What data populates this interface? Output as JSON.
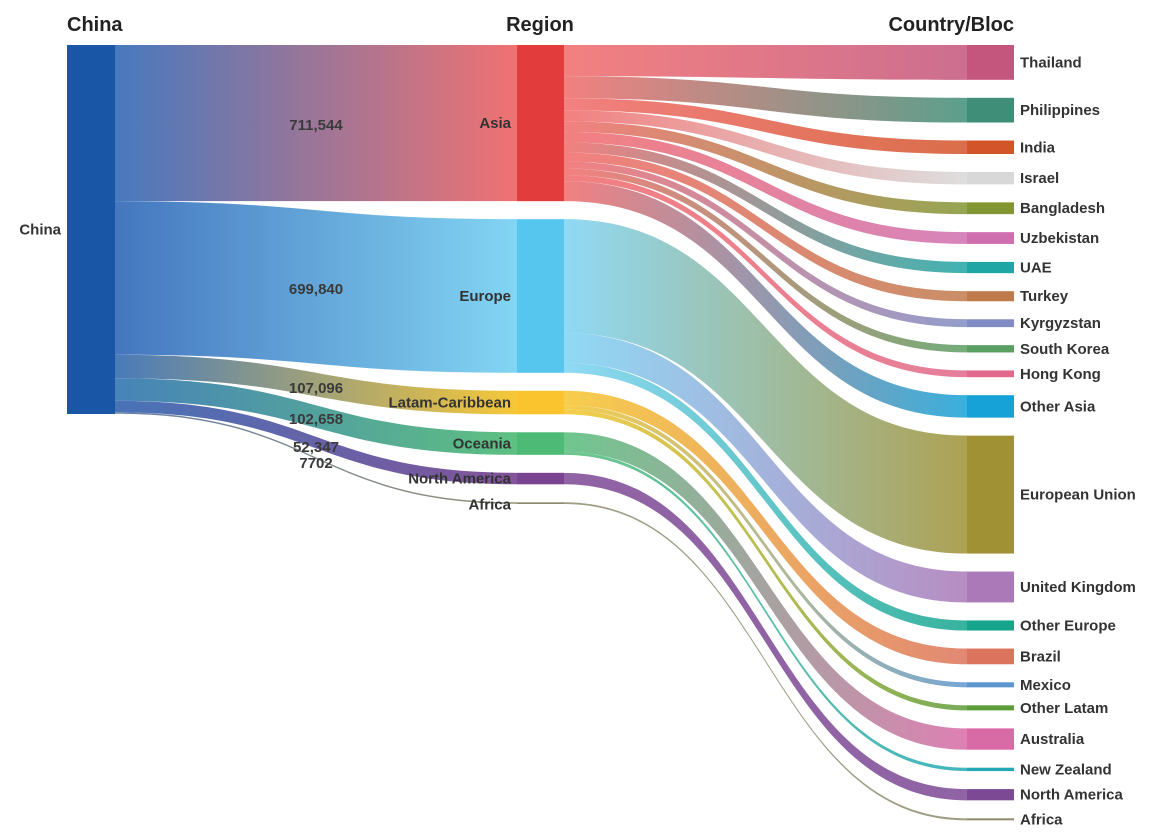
{
  "chart_data": {
    "type": "sankey",
    "columns": [
      "China",
      "Region",
      "Country/Bloc"
    ],
    "source": {
      "name": "China",
      "color": "#1a56a6"
    },
    "regions": [
      {
        "name": "Asia",
        "value": 711544,
        "value_label": "711,544",
        "color": "#e23c3c",
        "link_start": "#3d72ba",
        "link_end": "#f06a6a"
      },
      {
        "name": "Europe",
        "value": 699840,
        "value_label": "699,840",
        "color": "#56c6ef",
        "link_start": "#3a6fbb",
        "link_end": "#7cd3f3"
      },
      {
        "name": "Latam-Caribbean",
        "value": 107096,
        "value_label": "107,096",
        "color": "#f9c42d",
        "link_start": "#3f74b6",
        "link_end": "#f6c52d"
      },
      {
        "name": "Oceania",
        "value": 102658,
        "value_label": "102,658",
        "color": "#4dbb76",
        "link_start": "#3d7cb5",
        "link_end": "#55bd7a"
      },
      {
        "name": "North America",
        "value": 52347,
        "value_label": "52,347",
        "color": "#7b4490",
        "link_start": "#3f6cb3",
        "link_end": "#7c4994"
      },
      {
        "name": "Africa",
        "value": 7702,
        "value_label": "7702",
        "color": "#8d8b6c",
        "link_start": "#5f7aa2",
        "link_end": "#8d8b6c"
      }
    ],
    "countries": [
      {
        "name": "Thailand",
        "region": "Asia",
        "value": 62000,
        "color": "#c4557c"
      },
      {
        "name": "Philippines",
        "region": "Asia",
        "value": 44000,
        "color": "#3f8e78"
      },
      {
        "name": "India",
        "region": "Asia",
        "value": 24000,
        "color": "#d4542a"
      },
      {
        "name": "Israel",
        "region": "Asia",
        "value": 22000,
        "color": "#d8d8d8"
      },
      {
        "name": "Bangladesh",
        "region": "Asia",
        "value": 21000,
        "color": "#829634"
      },
      {
        "name": "Uzbekistan",
        "region": "Asia",
        "value": 21000,
        "color": "#cf6fb0"
      },
      {
        "name": "UAE",
        "region": "Asia",
        "value": 20000,
        "color": "#1ea6a4"
      },
      {
        "name": "Turkey",
        "region": "Asia",
        "value": 18000,
        "color": "#c07b4c"
      },
      {
        "name": "Kyrgyzstan",
        "region": "Asia",
        "value": 14000,
        "color": "#7f8dc4"
      },
      {
        "name": "South Korea",
        "region": "Asia",
        "value": 13000,
        "color": "#5b9e62"
      },
      {
        "name": "Hong Kong",
        "region": "Asia",
        "value": 12000,
        "color": "#e0688a"
      },
      {
        "name": "Other Asia",
        "region": "Asia",
        "value": 40000,
        "color": "#16a2d6"
      },
      {
        "name": "European Union",
        "region": "Europe",
        "value": 210000,
        "color": "#9f9134"
      },
      {
        "name": "United Kingdom",
        "region": "Europe",
        "value": 55000,
        "color": "#ab79b8"
      },
      {
        "name": "Other Europe",
        "region": "Europe",
        "value": 18000,
        "color": "#14a58c"
      },
      {
        "name": "Brazil",
        "region": "Latam-Caribbean",
        "value": 28000,
        "color": "#dc735c"
      },
      {
        "name": "Mexico",
        "region": "Latam-Caribbean",
        "value": 9000,
        "color": "#5c96cf"
      },
      {
        "name": "Other Latam",
        "region": "Latam-Caribbean",
        "value": 9000,
        "color": "#5e9c3a"
      },
      {
        "name": "Australia",
        "region": "Oceania",
        "value": 38000,
        "color": "#d86aa6"
      },
      {
        "name": "New Zealand",
        "region": "Oceania",
        "value": 6000,
        "color": "#23a9b5"
      },
      {
        "name": "North America",
        "region": "North America",
        "value": 20000,
        "color": "#7c4994"
      },
      {
        "name": "Africa",
        "region": "Africa",
        "value": 3000,
        "color": "#8d8b6c"
      }
    ]
  }
}
